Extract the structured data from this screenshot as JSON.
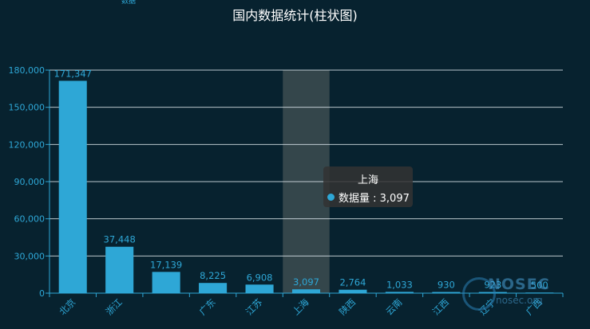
{
  "chart_data": {
    "type": "bar",
    "title": "国内数据统计(柱状图)",
    "categories": [
      "北京",
      "浙江",
      "",
      "广东",
      "江苏",
      "上海",
      "陕西",
      "云南",
      "江西",
      "辽宁",
      "广西"
    ],
    "series": [
      {
        "name": "数据量",
        "values": [
          171347,
          37448,
          17139,
          8225,
          6908,
          3097,
          2764,
          1033,
          930,
          923,
          500
        ]
      }
    ],
    "data_labels": [
      "171,347",
      "37,448",
      "17,139",
      "8,225",
      "6,908",
      "3,097",
      "2,764",
      "1,033",
      "930",
      "923",
      "500"
    ],
    "ylim": [
      0,
      180000
    ],
    "yticks": [
      0,
      30000,
      60000,
      90000,
      120000,
      150000,
      180000
    ],
    "ytick_labels": [
      "0",
      "30,000",
      "60,000",
      "90,000",
      "120,000",
      "150,000",
      "180,000"
    ],
    "grid": true,
    "highlighted_category": "上海",
    "colors": {
      "bar": "#2ea7d6",
      "axis": "#2ea7d6",
      "grid": "#d9e3e8",
      "highlight_band": "#3a4a4f",
      "background": "#07222f"
    }
  },
  "tooltip": {
    "name": "上海",
    "series_name": "数据量",
    "value": "3,097",
    "row_text": "数据量 : 3,097"
  },
  "legend_stub": "数据",
  "watermark": {
    "brand": "NOSEC",
    "sub": "nosec.org"
  }
}
